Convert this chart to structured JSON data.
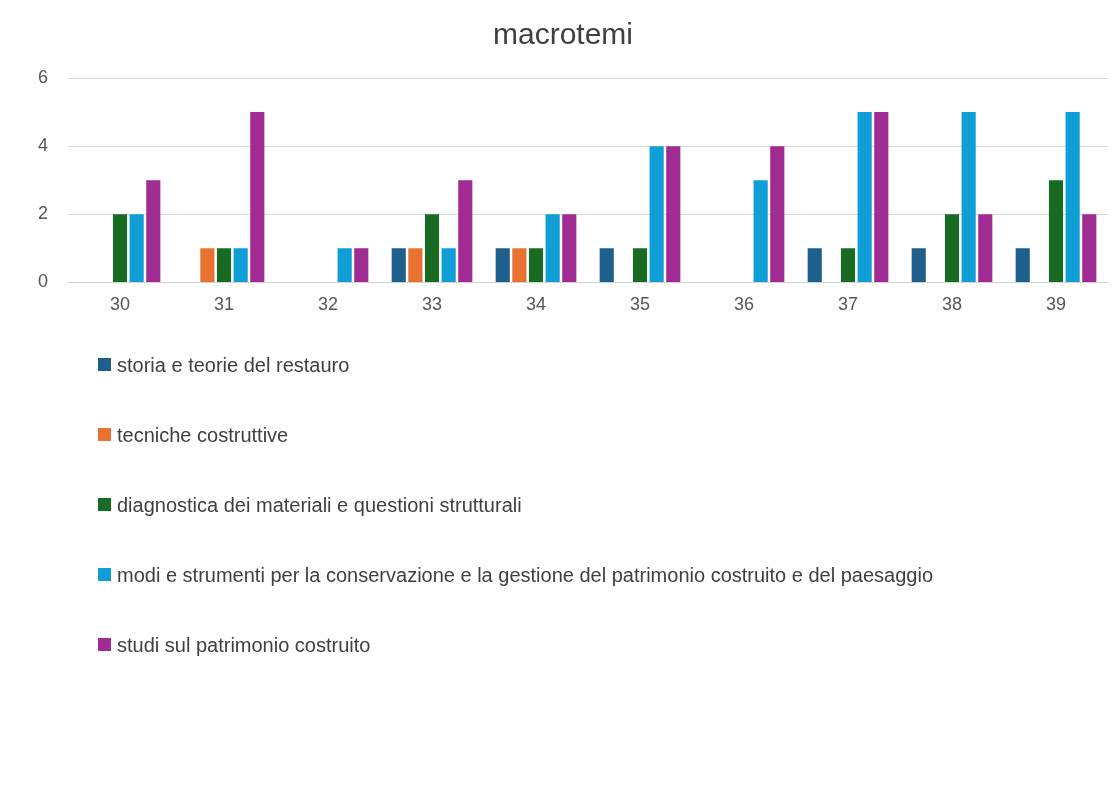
{
  "chart_data": {
    "type": "bar",
    "title": "macrotemi",
    "categories": [
      "30",
      "31",
      "32",
      "33",
      "34",
      "35",
      "36",
      "37",
      "38",
      "39"
    ],
    "series": [
      {
        "name": "storia e teorie del restauro",
        "color": "#1f5f8b",
        "values": [
          0,
          0,
          0,
          1,
          1,
          1,
          0,
          1,
          1,
          1
        ]
      },
      {
        "name": "tecniche costruttive",
        "color": "#e97132",
        "values": [
          0,
          1,
          0,
          1,
          1,
          0,
          0,
          0,
          0,
          0
        ]
      },
      {
        "name": "diagnostica dei materiali e questioni strutturali",
        "color": "#196b24",
        "values": [
          2,
          1,
          0,
          2,
          1,
          1,
          0,
          1,
          2,
          3
        ]
      },
      {
        "name": "modi e strumenti per la conservazione e la gestione del patrimonio costruito e del paesaggio",
        "color": "#0f9ed5",
        "values": [
          2,
          1,
          1,
          1,
          2,
          4,
          3,
          5,
          5,
          5
        ]
      },
      {
        "name": "studi sul patrimonio costruito",
        "color": "#a02b93",
        "values": [
          3,
          5,
          1,
          3,
          2,
          4,
          4,
          5,
          2,
          2
        ]
      }
    ],
    "ylim": [
      0,
      6
    ],
    "yticks": [
      0,
      2,
      4,
      6
    ],
    "grid": "y",
    "legend": "bottom"
  }
}
